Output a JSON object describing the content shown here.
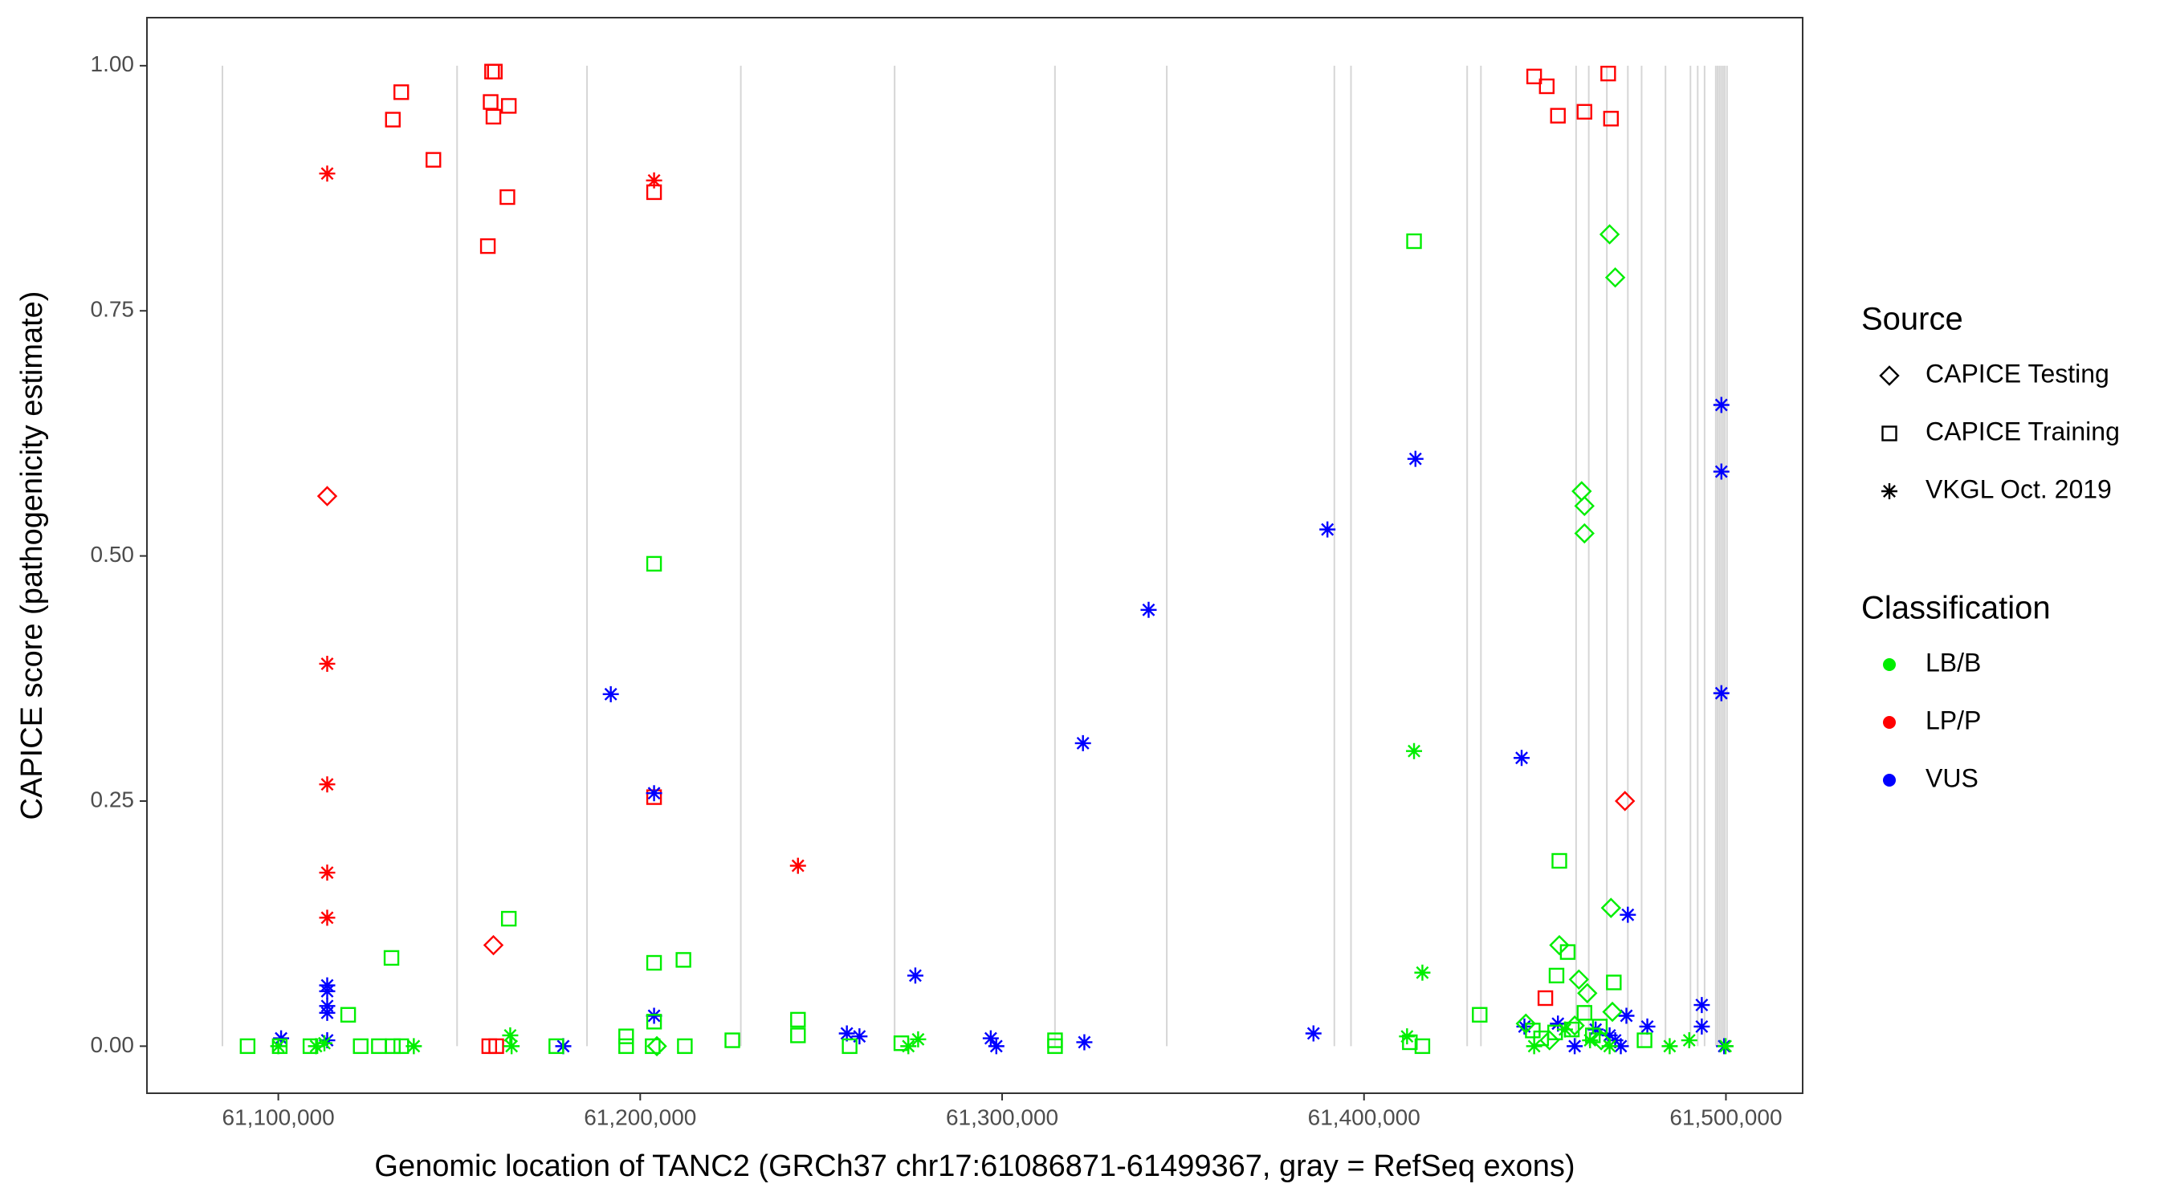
{
  "chart_data": {
    "type": "scatter",
    "x_label": "Genomic location of TANC2 (GRCh37 chr17:61086871-61499367, gray = RefSeq exons)",
    "y_label": "CAPICE score (pathogenicity estimate)",
    "xlim": [
      61063700,
      61521200
    ],
    "ylim": [
      -0.048,
      1.049
    ],
    "xticks": [
      {
        "value": 61100000,
        "label": "61,100,000"
      },
      {
        "value": 61200000,
        "label": "61,200,000"
      },
      {
        "value": 61300000,
        "label": "61,300,000"
      },
      {
        "value": 61400000,
        "label": "61,400,000"
      },
      {
        "value": 61500000,
        "label": "61,500,000"
      }
    ],
    "yticks": [
      {
        "value": 0,
        "label": "0.00"
      },
      {
        "value": 0.25,
        "label": "0.25"
      },
      {
        "value": 0.5,
        "label": "0.50"
      },
      {
        "value": 0.75,
        "label": "0.75"
      },
      {
        "value": 1,
        "label": "1.00"
      }
    ],
    "exon_color": "#d6d6d6",
    "exons": [
      61084560,
      61149400,
      61185300,
      61227800,
      61270300,
      61314600,
      61345500,
      61391800,
      61396400,
      61428500,
      61432300,
      61458600,
      61462100,
      61467100,
      61472900,
      61476700,
      61483300,
      61490200,
      61492200,
      61494100,
      61497200,
      61497700,
      61498200,
      61498700,
      61499200,
      61499700,
      61500300
    ],
    "legends": [
      {
        "title": "Source",
        "entries": [
          {
            "name": "CAPICE Testing",
            "shape": "diamond"
          },
          {
            "name": "CAPICE Training",
            "shape": "square"
          },
          {
            "name": "VKGL Oct. 2019",
            "shape": "star"
          }
        ]
      },
      {
        "title": "Classification",
        "entries": [
          {
            "name": "LB/B",
            "color": "#00ee00"
          },
          {
            "name": "LP/P",
            "color": "#ff0000"
          },
          {
            "name": "VUS",
            "color": "#0000ff"
          }
        ]
      }
    ],
    "series": [
      {
        "source": "CAPICE Training",
        "classification": "LP/P",
        "x": [
          61131650,
          61133970,
          61142850,
          61159060,
          61159830,
          61158670,
          61159440,
          61163690,
          61163300,
          61157900,
          61203830,
          61203830,
          61447010,
          61450490,
          61453580,
          61460910,
          61467470,
          61468240,
          61450110,
          61158290,
          61160220
        ],
        "y": [
          0.945,
          0.973,
          0.904,
          0.994,
          0.994,
          0.963,
          0.948,
          0.959,
          0.866,
          0.816,
          0.871,
          0.254,
          0.989,
          0.979,
          0.949,
          0.953,
          0.992,
          0.946,
          0.049,
          0,
          0
        ]
      },
      {
        "source": "CAPICE Testing",
        "classification": "LP/P",
        "x": [
          61113510,
          61159440,
          61472100
        ],
        "y": [
          0.561,
          0.103,
          0.25
        ]
      },
      {
        "source": "VKGL Oct. 2019",
        "classification": "LP/P",
        "x": [
          61113510,
          61113510,
          61113510,
          61113510,
          61113510,
          61203830,
          61243590
        ],
        "y": [
          0.89,
          0.39,
          0.267,
          0.177,
          0.131,
          0.883,
          0.184
        ]
      },
      {
        "source": "VKGL Oct. 2019",
        "classification": "VUS",
        "x": [
          61100770,
          61113510,
          61113510,
          61113510,
          61113510,
          61113510,
          61178740,
          61191870,
          61203830,
          61203830,
          61257100,
          61260580,
          61276020,
          61296860,
          61298400,
          61322340,
          61322720,
          61340480,
          61386030,
          61389890,
          61414210,
          61443550,
          61444320,
          61453580,
          61464000,
          61467860,
          61469410,
          61472500,
          61472900,
          61478280,
          61493330,
          61493330,
          61498740,
          61498740,
          61498740,
          61499510,
          61470950,
          61458210
        ],
        "y": [
          0.008,
          0.062,
          0.056,
          0.041,
          0.034,
          0.006,
          0,
          0.359,
          0.258,
          0.031,
          0.013,
          0.01,
          0.072,
          0.008,
          0,
          0.309,
          0.004,
          0.445,
          0.013,
          0.527,
          0.599,
          0.294,
          0.02,
          0.023,
          0.017,
          0.011,
          0.006,
          0.031,
          0.134,
          0.02,
          0.042,
          0.02,
          0.654,
          0.586,
          0.36,
          0,
          0,
          0
        ]
      },
      {
        "source": "CAPICE Training",
        "classification": "LB/B",
        "x": [
          61091510,
          61100390,
          61108880,
          61119300,
          61122770,
          61127790,
          61131650,
          61133970,
          61131270,
          61163690,
          61176810,
          61196110,
          61196110,
          61203440,
          61203830,
          61203830,
          61203830,
          61211940,
          61212330,
          61225450,
          61243590,
          61243590,
          61257870,
          61272160,
          61314620,
          61314620,
          61413820,
          61412660,
          61416130,
          61431960,
          61453970,
          61453190,
          61456280,
          61469020,
          61460910,
          61477510,
          61446630,
          61448940,
          61452800,
          61457430,
          61463230,
          61465160
        ],
        "y": [
          0,
          0,
          0,
          0.032,
          0,
          0,
          0,
          0,
          0.09,
          0.13,
          0,
          0.01,
          0,
          0,
          0.492,
          0.085,
          0.025,
          0.088,
          0,
          0.006,
          0.027,
          0.011,
          0,
          0.003,
          0.006,
          0,
          0.821,
          0.004,
          0,
          0.032,
          0.189,
          0.072,
          0.096,
          0.065,
          0.034,
          0.006,
          0.016,
          0.008,
          0.014,
          0.017,
          0.011,
          0.02
        ]
      },
      {
        "source": "CAPICE Testing",
        "classification": "LB/B",
        "x": [
          61467860,
          61469410,
          61460140,
          61460910,
          61460910,
          61468240,
          61453970,
          61459370,
          61461690,
          61468630,
          61444710,
          61458210,
          61451260,
          61465540,
          61204600
        ],
        "y": [
          0.828,
          0.784,
          0.566,
          0.551,
          0.523,
          0.141,
          0.103,
          0.068,
          0.054,
          0.035,
          0.023,
          0.021,
          0.006,
          0.006,
          0
        ]
      },
      {
        "source": "VKGL Oct. 2019",
        "classification": "LB/B",
        "x": [
          61100000,
          61110420,
          61112740,
          61137440,
          61164080,
          61164460,
          61276790,
          61274090,
          61413820,
          61416130,
          61411890,
          61447010,
          61455510,
          61462460,
          61467860,
          61484460,
          61489860,
          61499900
        ],
        "y": [
          0,
          0,
          0.003,
          0,
          0.011,
          0,
          0.007,
          0,
          0.301,
          0.075,
          0.01,
          0,
          0.017,
          0.006,
          0,
          0,
          0.006,
          0
        ]
      }
    ]
  }
}
